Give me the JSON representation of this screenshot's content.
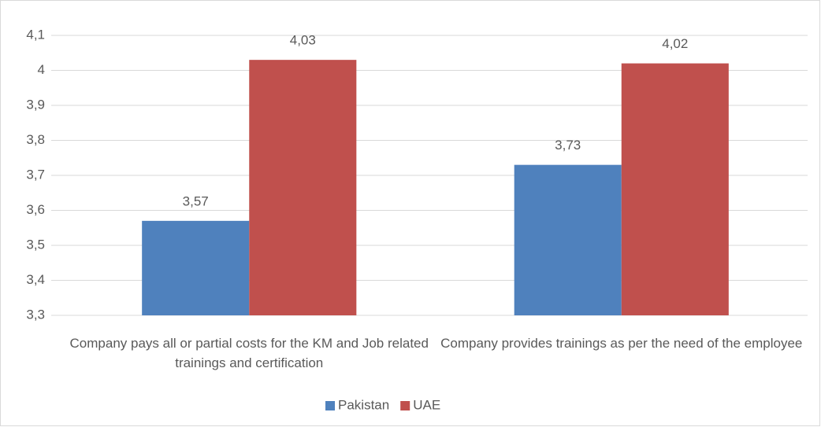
{
  "chart_data": {
    "type": "bar",
    "categories": [
      "Company pays all or partial costs for the KM and Job related trainings and certification",
      "Company provides trainings as per the need of the employee"
    ],
    "series": [
      {
        "name": "Pakistan",
        "color": "#4f81bd",
        "values": [
          3.57,
          3.73
        ],
        "value_labels": [
          "3,57",
          "3,73"
        ]
      },
      {
        "name": "UAE",
        "color": "#c0504d",
        "values": [
          4.03,
          4.02
        ],
        "value_labels": [
          "4,03",
          "4,02"
        ]
      }
    ],
    "ylim": [
      3.3,
      4.1
    ],
    "yticks": [
      {
        "value": 3.3,
        "label": "3,3"
      },
      {
        "value": 3.4,
        "label": "3,4"
      },
      {
        "value": 3.5,
        "label": "3,5"
      },
      {
        "value": 3.6,
        "label": "3,6"
      },
      {
        "value": 3.7,
        "label": "3,7"
      },
      {
        "value": 3.8,
        "label": "3,8"
      },
      {
        "value": 3.9,
        "label": "3,9"
      },
      4,
      {
        "value": 4.1,
        "label": "4,1"
      }
    ],
    "grid": true,
    "legend": "bottom"
  }
}
